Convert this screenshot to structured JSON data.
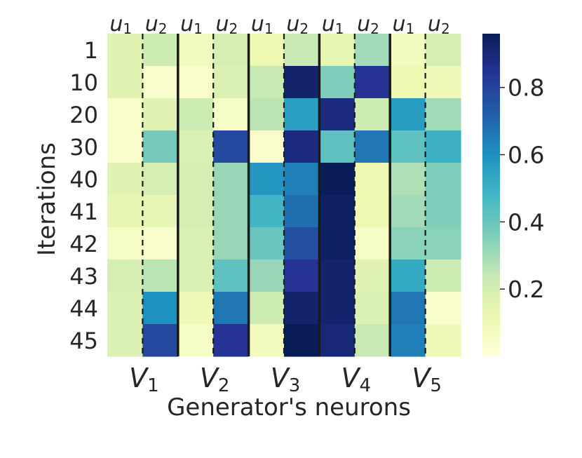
{
  "chart_data": {
    "type": "heatmap",
    "ylabel": "Iterations",
    "xlabel": "Generator's neurons",
    "rows": [
      "1",
      "10",
      "20",
      "30",
      "40",
      "41",
      "42",
      "43",
      "44",
      "45"
    ],
    "columns": [
      {
        "top": "u",
        "sub": "1"
      },
      {
        "top": "u",
        "sub": "2"
      },
      {
        "top": "u",
        "sub": "1"
      },
      {
        "top": "u",
        "sub": "2"
      },
      {
        "top": "u",
        "sub": "1"
      },
      {
        "top": "u",
        "sub": "2"
      },
      {
        "top": "u",
        "sub": "1"
      },
      {
        "top": "u",
        "sub": "2"
      },
      {
        "top": "u",
        "sub": "1"
      },
      {
        "top": "u",
        "sub": "2"
      }
    ],
    "groups": [
      {
        "top": "V",
        "sub": "1"
      },
      {
        "top": "V",
        "sub": "2"
      },
      {
        "top": "V",
        "sub": "3"
      },
      {
        "top": "V",
        "sub": "4"
      },
      {
        "top": "V",
        "sub": "5"
      }
    ],
    "values": [
      [
        0.16,
        0.22,
        0.08,
        0.2,
        0.12,
        0.24,
        0.14,
        0.3,
        0.08,
        0.2
      ],
      [
        0.16,
        0.04,
        0.04,
        0.18,
        0.24,
        0.92,
        0.36,
        0.84,
        0.12,
        0.1
      ],
      [
        0.04,
        0.16,
        0.22,
        0.06,
        0.26,
        0.55,
        0.88,
        0.22,
        0.56,
        0.3
      ],
      [
        0.04,
        0.38,
        0.18,
        0.78,
        0.04,
        0.88,
        0.42,
        0.66,
        0.42,
        0.5
      ],
      [
        0.16,
        0.2,
        0.2,
        0.32,
        0.58,
        0.64,
        0.96,
        0.12,
        0.28,
        0.36
      ],
      [
        0.14,
        0.14,
        0.2,
        0.32,
        0.48,
        0.68,
        0.94,
        0.12,
        0.3,
        0.36
      ],
      [
        0.06,
        0.04,
        0.18,
        0.32,
        0.4,
        0.76,
        0.94,
        0.06,
        0.34,
        0.34
      ],
      [
        0.2,
        0.26,
        0.18,
        0.42,
        0.32,
        0.84,
        0.92,
        0.16,
        0.52,
        0.22
      ],
      [
        0.18,
        0.6,
        0.1,
        0.66,
        0.22,
        0.92,
        0.92,
        0.18,
        0.66,
        0.04
      ],
      [
        0.18,
        0.78,
        0.06,
        0.84,
        0.08,
        0.97,
        0.9,
        0.24,
        0.64,
        0.1
      ]
    ],
    "colorbar": {
      "ticks": [
        0.2,
        0.4,
        0.6,
        0.8
      ],
      "tick_labels": [
        "0.2",
        "0.4",
        "0.6",
        "0.8"
      ],
      "range": [
        0.0,
        0.96
      ],
      "colormap": "YlGnBu"
    },
    "separators": {
      "solid_after_columns": [
        2,
        4,
        6,
        8
      ],
      "dashed_after_columns": [
        1,
        3,
        5,
        7,
        9
      ]
    }
  },
  "colors": {
    "text": "#262626",
    "separator": "#1a1a1a",
    "colormap_stops": [
      "#ffffd9",
      "#edf8b1",
      "#c7e9b4",
      "#7fcdbb",
      "#41b6c4",
      "#1d91c0",
      "#225ea8",
      "#253494",
      "#081d58"
    ]
  }
}
